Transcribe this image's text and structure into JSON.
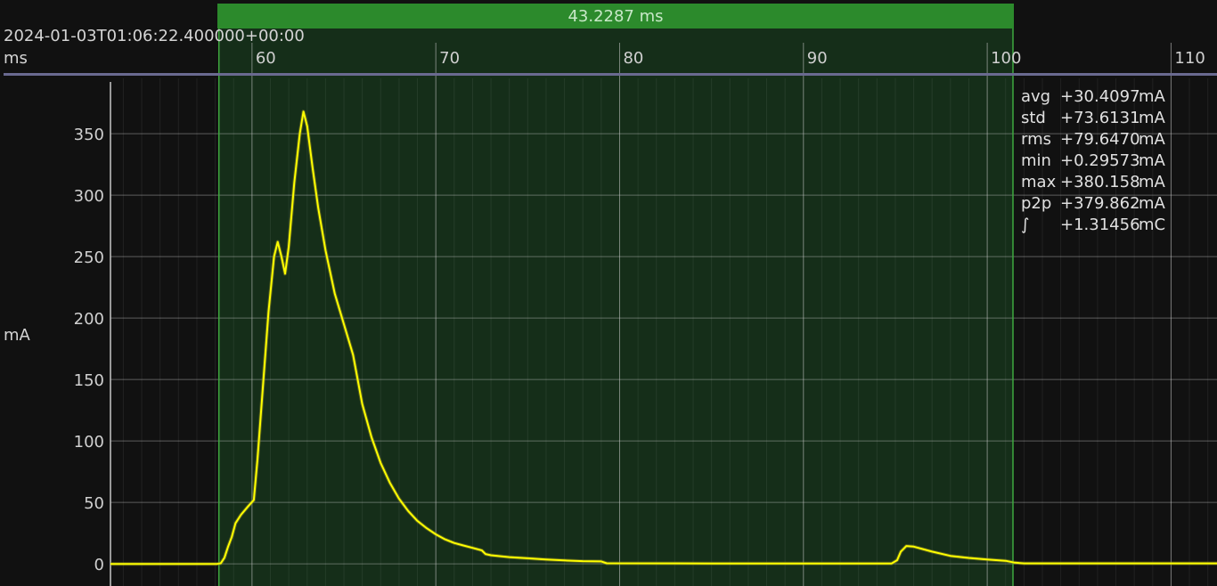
{
  "header": {
    "timestamp": "2024-01-03T01:06:22.400000+00:00",
    "x_units": "ms",
    "y_units": "mA"
  },
  "marker": {
    "label": "43.2287 ms",
    "color": "#2c8a2c"
  },
  "stats": [
    {
      "label": "avg",
      "value": "+30.4097",
      "unit": "mA"
    },
    {
      "label": "std",
      "value": "+73.6131",
      "unit": "mA"
    },
    {
      "label": "rms",
      "value": "+79.6470",
      "unit": "mA"
    },
    {
      "label": "min",
      "value": "+0.29573",
      "unit": "mA"
    },
    {
      "label": "max",
      "value": "+380.158",
      "unit": "mA"
    },
    {
      "label": "p2p",
      "value": "+379.862",
      "unit": "mA"
    },
    {
      "label": "∫",
      "value": "+1.31456",
      "unit": "mC"
    }
  ],
  "chart_data": {
    "type": "line",
    "xlabel": "ms",
    "ylabel": "mA",
    "xlim": [
      52.3,
      112.5
    ],
    "ylim": [
      -18,
      395
    ],
    "x_ticks": [
      60,
      70,
      80,
      90,
      100,
      110
    ],
    "y_ticks": [
      0,
      50,
      100,
      150,
      200,
      250,
      300,
      350
    ],
    "grid": true,
    "selection_range": [
      58.2,
      101.4
    ],
    "line_color": "#ffff00",
    "series": [
      {
        "values": [
          [
            52.3,
            0
          ],
          [
            58.1,
            0
          ],
          [
            58.3,
            0.5
          ],
          [
            58.5,
            5
          ],
          [
            58.7,
            14
          ],
          [
            58.9,
            22
          ],
          [
            59.1,
            33
          ],
          [
            59.4,
            40
          ],
          [
            59.8,
            47
          ],
          [
            60.1,
            52
          ],
          [
            60.3,
            85
          ],
          [
            60.6,
            145
          ],
          [
            60.9,
            205
          ],
          [
            61.2,
            250
          ],
          [
            61.4,
            262
          ],
          [
            61.6,
            250
          ],
          [
            61.8,
            236
          ],
          [
            62.0,
            258
          ],
          [
            62.3,
            310
          ],
          [
            62.6,
            350
          ],
          [
            62.8,
            368
          ],
          [
            63.0,
            356
          ],
          [
            63.3,
            322
          ],
          [
            63.6,
            290
          ],
          [
            64.0,
            255
          ],
          [
            64.5,
            220
          ],
          [
            65.0,
            195
          ],
          [
            65.5,
            170
          ],
          [
            66.0,
            130
          ],
          [
            66.5,
            103
          ],
          [
            67.0,
            82
          ],
          [
            67.5,
            66
          ],
          [
            68.0,
            53
          ],
          [
            68.5,
            43
          ],
          [
            69.0,
            35
          ],
          [
            69.5,
            29
          ],
          [
            70.0,
            24
          ],
          [
            70.5,
            20
          ],
          [
            71.0,
            17
          ],
          [
            71.5,
            15
          ],
          [
            72.0,
            13
          ],
          [
            72.5,
            11
          ],
          [
            72.7,
            8
          ],
          [
            73.0,
            7
          ],
          [
            74.0,
            5.5
          ],
          [
            75.0,
            4.5
          ],
          [
            76.0,
            3.5
          ],
          [
            77.0,
            2.8
          ],
          [
            78.0,
            2.2
          ],
          [
            79.0,
            2
          ],
          [
            79.3,
            0.5
          ],
          [
            85,
            0.3
          ],
          [
            90,
            0.3
          ],
          [
            94.8,
            0.3
          ],
          [
            95.1,
            3
          ],
          [
            95.3,
            10
          ],
          [
            95.6,
            14.5
          ],
          [
            96.0,
            14
          ],
          [
            97.0,
            10
          ],
          [
            98.0,
            6.5
          ],
          [
            99.0,
            4.8
          ],
          [
            100.0,
            3.5
          ],
          [
            101.0,
            2.5
          ],
          [
            101.5,
            1
          ],
          [
            102,
            0.4
          ],
          [
            112.5,
            0.4
          ]
        ]
      }
    ]
  }
}
